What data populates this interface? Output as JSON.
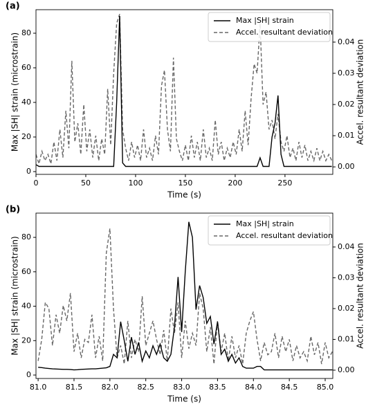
{
  "chart_data": [
    {
      "type": "line",
      "panel_label": "(a)",
      "xlabel": "Time (s)",
      "ylabel": "Max |SH| strain (microstrain)",
      "y2label": "Accel. resultant deviation",
      "legend": "upper right",
      "xlim": [
        0,
        298
      ],
      "ylim": [
        -1.6,
        93.6
      ],
      "y2lim": [
        -0.0024,
        0.0504
      ],
      "xticks": [
        0,
        50,
        100,
        150,
        200,
        250
      ],
      "yticks": [
        0,
        20,
        40,
        60,
        80
      ],
      "y2ticks": [
        {
          "value": 0,
          "label": "0.00"
        },
        0.01,
        0.02,
        0.03,
        0.04
      ],
      "x": [
        0,
        3,
        6,
        9,
        12,
        15,
        18,
        21,
        24,
        27,
        30,
        33,
        36,
        39,
        42,
        45,
        48,
        51,
        54,
        57,
        60,
        63,
        66,
        69,
        72,
        75,
        78,
        81,
        84,
        87,
        90,
        93,
        96,
        99,
        102,
        105,
        108,
        111,
        114,
        117,
        120,
        123,
        126,
        129,
        132,
        135,
        138,
        141,
        144,
        147,
        150,
        153,
        156,
        159,
        162,
        165,
        168,
        171,
        174,
        177,
        180,
        183,
        186,
        189,
        192,
        195,
        198,
        201,
        204,
        207,
        210,
        213,
        216,
        219,
        222,
        225,
        228,
        231,
        234,
        237,
        240,
        243,
        246,
        249,
        252,
        255,
        258,
        261,
        264,
        267,
        270,
        273,
        276,
        279,
        282,
        285,
        288,
        291,
        294,
        297
      ],
      "series": [
        {
          "name": "Max |SH| strain",
          "color": "#000000",
          "linestyle": "solid",
          "axis": "y",
          "values": [
            4,
            3,
            3,
            3,
            3,
            3,
            3,
            3,
            3,
            3,
            3,
            3,
            3,
            3,
            3,
            3,
            3,
            3,
            3,
            3,
            3,
            3,
            3,
            3,
            3,
            3,
            3,
            40,
            90,
            5,
            3,
            3,
            3,
            3,
            3,
            3,
            3,
            3,
            3,
            3,
            3,
            3,
            3,
            3,
            3,
            3,
            3,
            3,
            3,
            3,
            3,
            3,
            3,
            3,
            3,
            3,
            3,
            3,
            3,
            3,
            3,
            3,
            3,
            3,
            3,
            3,
            3,
            3,
            3,
            3,
            3,
            3,
            3,
            3,
            3,
            8,
            3,
            3,
            3,
            20,
            28,
            44,
            10,
            3,
            3,
            3,
            3,
            3,
            3,
            3,
            3,
            3,
            3,
            3,
            3,
            3,
            3,
            3,
            3,
            3
          ]
        },
        {
          "name": "Accel. resultant deviation",
          "color": "#666666",
          "linestyle": "dashed",
          "axis": "y2",
          "values": [
            0.004,
            0.001,
            0.005,
            0.002,
            0.004,
            0.001,
            0.008,
            0.002,
            0.012,
            0.003,
            0.018,
            0.006,
            0.034,
            0.008,
            0.014,
            0.004,
            0.02,
            0.005,
            0.012,
            0.003,
            0.01,
            0.002,
            0.009,
            0.004,
            0.025,
            0.007,
            0.03,
            0.046,
            0.049,
            0.012,
            0.006,
            0.002,
            0.008,
            0.003,
            0.007,
            0.002,
            0.012,
            0.003,
            0.006,
            0.002,
            0.01,
            0.004,
            0.026,
            0.031,
            0.012,
            0.005,
            0.035,
            0.009,
            0.005,
            0.002,
            0.007,
            0.002,
            0.01,
            0.003,
            0.008,
            0.002,
            0.012,
            0.003,
            0.006,
            0.002,
            0.015,
            0.004,
            0.008,
            0.002,
            0.006,
            0.003,
            0.008,
            0.004,
            0.012,
            0.005,
            0.018,
            0.007,
            0.022,
            0.033,
            0.03,
            0.046,
            0.02,
            0.024,
            0.012,
            0.015,
            0.009,
            0.017,
            0.008,
            0.005,
            0.01,
            0.003,
            0.006,
            0.002,
            0.008,
            0.003,
            0.007,
            0.002,
            0.005,
            0.002,
            0.006,
            0.002,
            0.005,
            0.002,
            0.004,
            0.002
          ]
        }
      ]
    },
    {
      "type": "line",
      "panel_label": "(b)",
      "xlabel": "Time (s)",
      "ylabel": "Max |SH| strain (microstrain)",
      "y2label": "Accel. resultant deviation",
      "legend": "upper right",
      "xlim": [
        80.97,
        85.106
      ],
      "ylim": [
        -2.0,
        94.1
      ],
      "y2lim": [
        -0.0027,
        0.051
      ],
      "xticks": [
        {
          "value": 81,
          "label": "81.0"
        },
        81.5,
        {
          "value": 82,
          "label": "82.0"
        },
        82.5,
        {
          "value": 83,
          "label": "83.0"
        },
        83.5,
        {
          "value": 84,
          "label": "84.0"
        },
        84.5,
        {
          "value": 85,
          "label": "85.0"
        }
      ],
      "yticks": [
        0,
        20,
        40,
        60,
        80
      ],
      "y2ticks": [
        {
          "value": 0,
          "label": "0.00"
        },
        0.01,
        0.02,
        0.03,
        0.04
      ],
      "x": [
        81.0,
        81.05,
        81.1,
        81.15,
        81.2,
        81.25,
        81.3,
        81.35,
        81.4,
        81.45,
        81.5,
        81.55,
        81.6,
        81.65,
        81.7,
        81.75,
        81.8,
        81.85,
        81.9,
        81.95,
        82.0,
        82.05,
        82.1,
        82.15,
        82.2,
        82.25,
        82.3,
        82.35,
        82.4,
        82.45,
        82.5,
        82.55,
        82.6,
        82.65,
        82.7,
        82.75,
        82.8,
        82.85,
        82.9,
        82.95,
        83.0,
        83.05,
        83.1,
        83.15,
        83.2,
        83.25,
        83.3,
        83.35,
        83.4,
        83.45,
        83.5,
        83.55,
        83.6,
        83.65,
        83.7,
        83.75,
        83.8,
        83.85,
        83.9,
        83.95,
        84.0,
        84.05,
        84.1,
        84.15,
        84.2,
        84.25,
        84.3,
        84.35,
        84.4,
        84.45,
        84.5,
        84.55,
        84.6,
        84.65,
        84.7,
        84.75,
        84.8,
        84.85,
        84.9,
        84.95,
        85.0,
        85.05,
        85.1
      ],
      "series": [
        {
          "name": "Max |SH| strain",
          "color": "#000000",
          "linestyle": "solid",
          "axis": "y",
          "values": [
            4.5,
            4.3,
            4.0,
            3.8,
            3.6,
            3.5,
            3.4,
            3.3,
            3.3,
            3.2,
            3.0,
            3.1,
            3.3,
            3.4,
            3.5,
            3.6,
            3.6,
            3.8,
            4.0,
            4.2,
            5,
            12,
            10,
            31,
            20,
            8,
            22,
            12,
            19,
            8,
            14,
            10,
            17,
            12,
            18,
            10,
            8,
            12,
            28,
            57,
            25,
            60,
            89,
            80,
            38,
            52,
            45,
            30,
            34,
            18,
            31,
            12,
            15,
            8,
            12,
            7,
            10,
            5,
            4,
            4,
            4,
            5,
            5,
            3,
            3,
            3,
            3,
            3,
            3,
            3,
            3,
            3,
            3,
            3,
            3,
            3,
            3,
            3,
            3,
            3,
            3,
            3,
            3
          ]
        },
        {
          "name": "Accel. resultant deviation",
          "color": "#666666",
          "linestyle": "dashed",
          "axis": "y2",
          "values": [
            0.003,
            0.01,
            0.022,
            0.02,
            0.008,
            0.018,
            0.012,
            0.021,
            0.016,
            0.025,
            0.006,
            0.012,
            0.004,
            0.01,
            0.009,
            0.018,
            0.004,
            0.011,
            0.003,
            0.038,
            0.046,
            0.02,
            0.004,
            0.008,
            0.002,
            0.016,
            0.004,
            0.01,
            0.006,
            0.024,
            0.008,
            0.012,
            0.016,
            0.01,
            0.005,
            0.013,
            0.003,
            0.02,
            0.012,
            0.022,
            0.004,
            0.016,
            0.007,
            0.012,
            0.008,
            0.025,
            0.02,
            0.006,
            0.014,
            0.002,
            0.016,
            0.006,
            0.012,
            0.003,
            0.011,
            0.004,
            0.008,
            0.002,
            0.012,
            0.016,
            0.019,
            0.01,
            0.003,
            0.009,
            0.005,
            0.006,
            0.012,
            0.004,
            0.011,
            0.006,
            0.01,
            0.003,
            0.008,
            0.004,
            0.006,
            0.003,
            0.011,
            0.005,
            0.009,
            0.002,
            0.009,
            0.004,
            0.006
          ]
        }
      ]
    }
  ]
}
